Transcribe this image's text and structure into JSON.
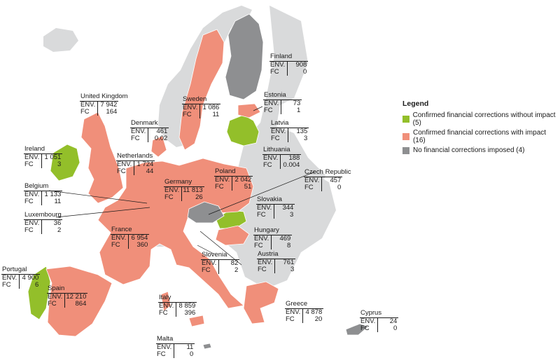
{
  "legend": {
    "title": "Legend",
    "items": [
      {
        "label": "Confirmed financial corrections without impact (5)",
        "color": "#93bf2a"
      },
      {
        "label": "Confirmed financial corrections with impact (16)",
        "color": "#f08f7a"
      },
      {
        "label": "No financial corrections imposed (4)",
        "color": "#8e8f91"
      }
    ]
  },
  "row_labels": {
    "env": "ENV.",
    "fc": "FC"
  },
  "countries": [
    {
      "id": "finland",
      "name": "Finland",
      "env": "908",
      "fc": "0"
    },
    {
      "id": "estonia",
      "name": "Estonia",
      "env": "73",
      "fc": "1"
    },
    {
      "id": "latvia",
      "name": "Latvia",
      "env": "135",
      "fc": "3"
    },
    {
      "id": "lithuania",
      "name": "Lithuania",
      "env": "188",
      "fc": "0.004"
    },
    {
      "id": "sweden",
      "name": "Sweden",
      "env": "1 086",
      "fc": "11"
    },
    {
      "id": "uk",
      "name": "United Kingdom",
      "env": "7 942",
      "fc": "164"
    },
    {
      "id": "denmark",
      "name": "Denmark",
      "env": "461",
      "fc": "0.02"
    },
    {
      "id": "ireland",
      "name": "Ireland",
      "env": "1 051",
      "fc": "3"
    },
    {
      "id": "netherlands",
      "name": "Netherlands",
      "env": "1 724",
      "fc": "44"
    },
    {
      "id": "belgium",
      "name": "Belgium",
      "env": "1 133",
      "fc": "11"
    },
    {
      "id": "luxembourg",
      "name": "Luxembourg",
      "env": "36",
      "fc": "2"
    },
    {
      "id": "germany",
      "name": "Germany",
      "env": "11 813",
      "fc": "26"
    },
    {
      "id": "poland",
      "name": "Poland",
      "env": "2 042",
      "fc": "51"
    },
    {
      "id": "czech",
      "name": "Czech Republic",
      "env": "457",
      "fc": "0"
    },
    {
      "id": "slovakia",
      "name": "Slovakia",
      "env": "344",
      "fc": "3"
    },
    {
      "id": "hungary",
      "name": "Hungary",
      "env": "469",
      "fc": "8"
    },
    {
      "id": "france",
      "name": "France",
      "env": "6 954",
      "fc": "360"
    },
    {
      "id": "slovenia",
      "name": "Slovenia",
      "env": "82",
      "fc": "2"
    },
    {
      "id": "austria",
      "name": "Austria",
      "env": "761",
      "fc": "3"
    },
    {
      "id": "portugal",
      "name": "Portugal",
      "env": "4 900",
      "fc": "6"
    },
    {
      "id": "spain",
      "name": "Spain",
      "env": "12 210",
      "fc": "864"
    },
    {
      "id": "italy",
      "name": "Italy",
      "env": "8 859",
      "fc": "396"
    },
    {
      "id": "greece",
      "name": "Greece",
      "env": "4 878",
      "fc": "20"
    },
    {
      "id": "cyprus",
      "name": "Cyprus",
      "env": "24",
      "fc": "0"
    },
    {
      "id": "malta",
      "name": "Malta",
      "env": "11",
      "fc": "0"
    }
  ]
}
